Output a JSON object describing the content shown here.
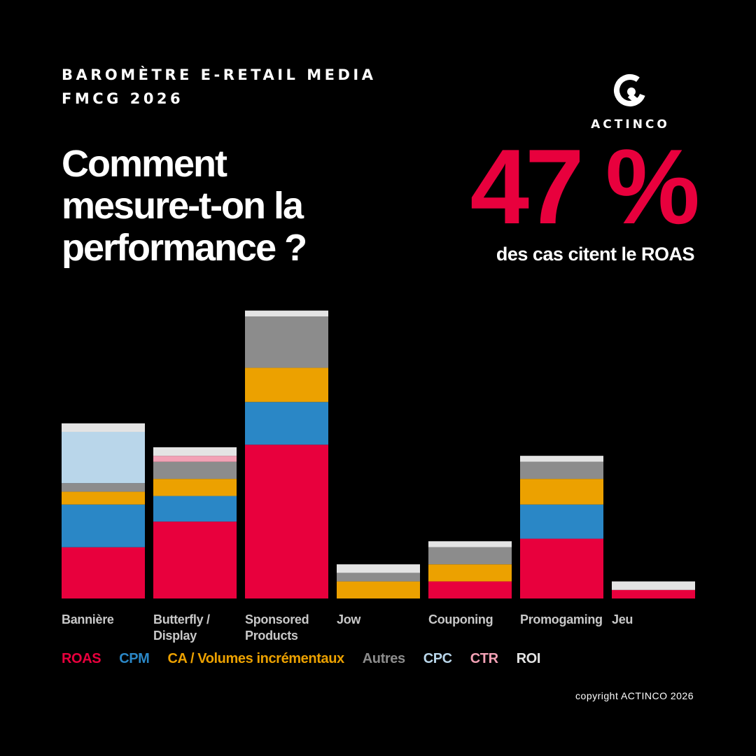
{
  "header": {
    "kicker_line1": "BAROMÈTRE E-RETAIL MEDIA",
    "kicker_line2": "FMCG 2026",
    "headline_line1": "Comment",
    "headline_line2": "mesure-t-on la",
    "headline_line3": "performance ?"
  },
  "brand": {
    "name": "ACTINCO",
    "logo_icon": "actinco-logo-icon"
  },
  "highlight": {
    "value": "47 %",
    "caption": "des cas citent le ROAS",
    "color": "#e8003d"
  },
  "chart_data": {
    "type": "bar",
    "stacked": true,
    "categories": [
      "Bannière",
      "Butterfly / Display",
      "Sponsored Products",
      "Jow",
      "Couponing",
      "Promogaming",
      "Jeu"
    ],
    "category_lines": [
      [
        "Bannière"
      ],
      [
        "Butterfly /",
        "Display"
      ],
      [
        "Sponsored",
        "Products"
      ],
      [
        "Jow"
      ],
      [
        "Couponing"
      ],
      [
        "Promogaming"
      ],
      [
        "Jeu"
      ]
    ],
    "series": [
      {
        "name": "ROAS",
        "color": "#e8003d",
        "values": [
          6,
          9,
          18,
          0,
          2,
          7,
          1
        ]
      },
      {
        "name": "CPM",
        "color": "#2a87c6",
        "values": [
          5,
          3,
          5,
          0,
          0,
          4,
          0
        ]
      },
      {
        "name": "CA / Volumes incrémentaux",
        "color": "#eca100",
        "values": [
          1.5,
          2,
          4,
          2,
          2,
          3,
          0
        ]
      },
      {
        "name": "Autres",
        "color": "#8c8c8c",
        "values": [
          1,
          2,
          6,
          1,
          2,
          2,
          0
        ]
      },
      {
        "name": "CPC",
        "color": "#b9d6ea",
        "values": [
          6,
          0,
          0,
          0,
          0,
          0,
          0
        ]
      },
      {
        "name": "CTR",
        "color": "#f3a1b5",
        "values": [
          0,
          0.7,
          0,
          0,
          0,
          0,
          0
        ]
      },
      {
        "name": "ROI",
        "color": "#e4e4e4",
        "values": [
          1,
          1,
          0.7,
          1,
          0.7,
          0.7,
          1
        ]
      }
    ],
    "ylim": [
      0,
      34
    ],
    "grid": false,
    "legend_position": "bottom"
  },
  "footer": {
    "copyright": "copyright ACTINCO 2026"
  }
}
